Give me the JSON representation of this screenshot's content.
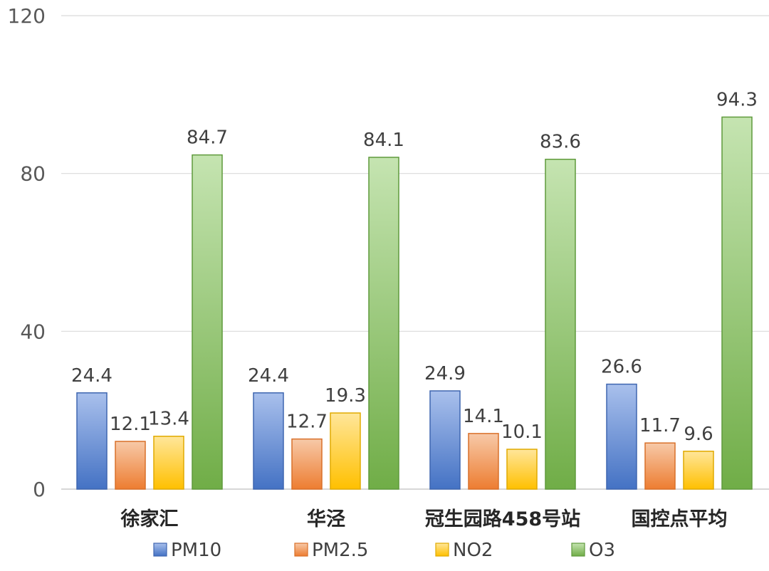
{
  "chart_data": {
    "type": "bar",
    "title": "",
    "xlabel": "",
    "ylabel": "",
    "categories": [
      "徐家汇",
      "华泾",
      "冠生园路458号站",
      "国控点平均"
    ],
    "series": [
      {
        "name": "PM10",
        "values": [
          24.4,
          24.4,
          24.9,
          26.6
        ],
        "values_text": [
          "24.4",
          "24.4",
          "24.9",
          "26.6"
        ],
        "color_top": "#a9c0ec",
        "color_bottom": "#4472c4",
        "stroke": "#3f66b0"
      },
      {
        "name": "PM2.5",
        "values": [
          12.1,
          12.7,
          14.1,
          11.7
        ],
        "values_text": [
          "12.1",
          "12.7",
          "14.1",
          "11.7"
        ],
        "color_top": "#f7c9a8",
        "color_bottom": "#ed7d31",
        "stroke": "#d9702a"
      },
      {
        "name": "NO2",
        "values": [
          13.4,
          19.3,
          10.1,
          9.6
        ],
        "values_text": [
          "13.4",
          "19.3",
          "10.1",
          "9.6"
        ],
        "color_top": "#ffe69a",
        "color_bottom": "#ffc000",
        "stroke": "#e0aa00"
      },
      {
        "name": "O3",
        "values": [
          84.7,
          84.1,
          83.6,
          94.3
        ],
        "values_text": [
          "84.7",
          "84.1",
          "83.6",
          "94.3"
        ],
        "color_top": "#c5e4b1",
        "color_bottom": "#70ad47",
        "stroke": "#5f9a3c"
      }
    ],
    "ylim": [
      0,
      120
    ],
    "yticks": [
      "0",
      "40",
      "80",
      "120"
    ],
    "grid": true,
    "legend_position": "bottom",
    "gridline_color": "#d9d9d9"
  }
}
